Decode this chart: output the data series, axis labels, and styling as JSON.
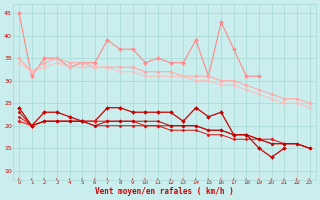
{
  "xlabel": "Vent moyen/en rafales ( km/h )",
  "x": [
    0,
    1,
    2,
    3,
    4,
    5,
    6,
    7,
    8,
    9,
    10,
    11,
    12,
    13,
    14,
    15,
    16,
    17,
    18,
    19,
    20,
    21,
    22,
    23
  ],
  "ylim": [
    8,
    47
  ],
  "yticks": [
    10,
    15,
    20,
    25,
    30,
    35,
    40,
    45
  ],
  "bg_color": "#caeeed",
  "grid_color": "#a8d8d5",
  "series": [
    {
      "name": "rafales_scatter",
      "color": "#ff8888",
      "marker": "D",
      "markersize": 2.0,
      "linewidth": 0.8,
      "data": [
        45,
        31,
        35,
        35,
        33,
        34,
        34,
        39,
        37,
        37,
        34,
        35,
        34,
        34,
        39,
        31,
        43,
        37,
        31,
        31,
        null,
        null,
        null,
        null
      ]
    },
    {
      "name": "rafales_trend1",
      "color": "#ffaaaa",
      "marker": "D",
      "markersize": 1.8,
      "linewidth": 0.8,
      "data": [
        35,
        32,
        34,
        35,
        34,
        34,
        33,
        33,
        33,
        33,
        32,
        32,
        32,
        31,
        31,
        31,
        30,
        30,
        29,
        28,
        27,
        26,
        26,
        25
      ]
    },
    {
      "name": "rafales_trend2",
      "color": "#ffbbbb",
      "marker": "D",
      "markersize": 1.5,
      "linewidth": 0.7,
      "data": [
        34,
        32,
        33,
        34,
        33,
        33,
        33,
        33,
        32,
        32,
        31,
        31,
        31,
        31,
        30,
        30,
        29,
        29,
        28,
        27,
        26,
        25,
        25,
        24
      ]
    },
    {
      "name": "moyen_scatter",
      "color": "#cc0000",
      "marker": "D",
      "markersize": 2.0,
      "linewidth": 0.9,
      "data": [
        24,
        20,
        23,
        23,
        22,
        21,
        21,
        24,
        24,
        23,
        23,
        23,
        23,
        21,
        24,
        22,
        23,
        18,
        18,
        15,
        13,
        15,
        null,
        null
      ]
    },
    {
      "name": "moyen_trend1",
      "color": "#ee2222",
      "marker": "D",
      "markersize": 1.8,
      "linewidth": 0.8,
      "data": [
        21,
        20,
        21,
        21,
        21,
        21,
        21,
        21,
        21,
        21,
        20,
        20,
        20,
        20,
        20,
        19,
        19,
        18,
        18,
        17,
        17,
        16,
        16,
        15
      ]
    },
    {
      "name": "moyen_trend2",
      "color": "#dd1111",
      "marker": "D",
      "markersize": 1.5,
      "linewidth": 0.7,
      "data": [
        22,
        20,
        21,
        21,
        21,
        21,
        20,
        20,
        20,
        20,
        20,
        20,
        19,
        19,
        19,
        18,
        18,
        17,
        17,
        17,
        16,
        16,
        16,
        15
      ]
    },
    {
      "name": "moyen_trend3",
      "color": "#bb0000",
      "marker": "D",
      "markersize": 1.5,
      "linewidth": 0.7,
      "data": [
        23,
        20,
        21,
        21,
        21,
        21,
        20,
        21,
        21,
        21,
        21,
        21,
        20,
        20,
        20,
        19,
        19,
        18,
        18,
        17,
        16,
        16,
        16,
        15
      ]
    }
  ],
  "tick_color": "#cc0000",
  "label_color": "#cc0000"
}
